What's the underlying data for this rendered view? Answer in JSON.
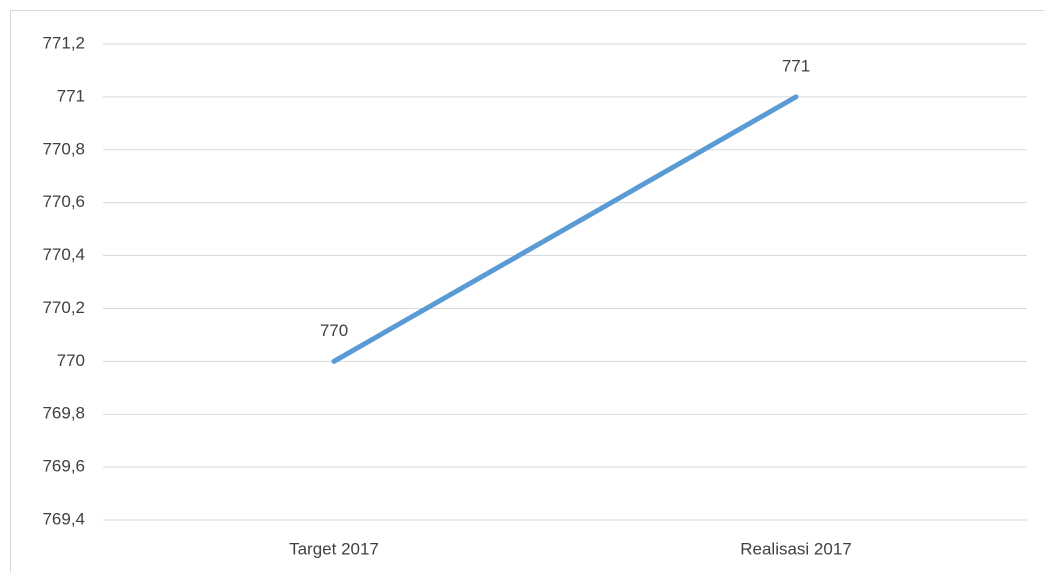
{
  "chart_data": {
    "type": "line",
    "categories": [
      "Target 2017",
      "Realisasi 2017"
    ],
    "values": [
      770,
      771
    ],
    "color": "#5b9bd5",
    "ylim": [
      769.4,
      771.2
    ],
    "yticks": [
      {
        "value": 769.4,
        "label": "769,4"
      },
      {
        "value": 769.6,
        "label": "769,6"
      },
      {
        "value": 769.8,
        "label": "769,8"
      },
      770,
      {
        "value": 770.2,
        "label": "770,2"
      },
      {
        "value": 770.4,
        "label": "770,4"
      },
      {
        "value": 770.6,
        "label": "770,6"
      },
      {
        "value": 770.8,
        "label": "770,8"
      },
      771,
      {
        "value": 771.2,
        "label": "771,2"
      }
    ],
    "grid": true
  }
}
